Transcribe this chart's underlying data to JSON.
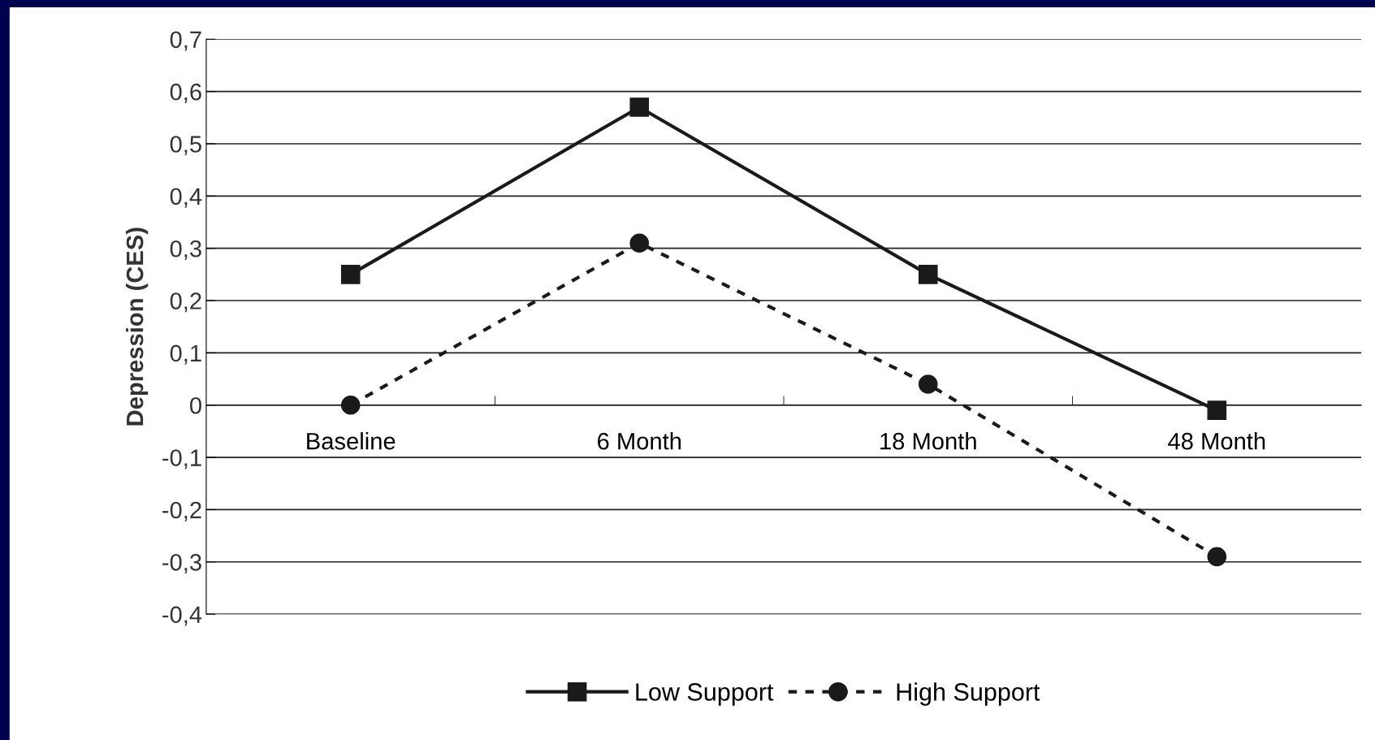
{
  "chart_data": {
    "type": "line",
    "ylabel": "Depression (CES)",
    "categories": [
      "Baseline",
      "6 Month",
      "18 Month",
      "48 Month"
    ],
    "series": [
      {
        "name": "Low Support",
        "color": "#1a1a1a",
        "values": [
          0.25,
          0.57,
          0.25,
          -0.01
        ],
        "marker": "square",
        "line_style": "solid"
      },
      {
        "name": "High Support",
        "color": "#1a1a1a",
        "values": [
          0.0,
          0.31,
          0.04,
          -0.29
        ],
        "marker": "circle",
        "line_style": "dotted"
      }
    ],
    "ylim": [
      -0.4,
      0.7
    ],
    "yticks": [
      {
        "value": -0.4,
        "label": "-0,4"
      },
      {
        "value": -0.3,
        "label": "-0,3"
      },
      {
        "value": -0.2,
        "label": "-0,2"
      },
      {
        "value": -0.1,
        "label": "-0,1"
      },
      0,
      {
        "value": 0.1,
        "label": "0,1"
      },
      {
        "value": 0.2,
        "label": "0,2"
      },
      {
        "value": 0.3,
        "label": "0,3"
      },
      {
        "value": 0.4,
        "label": "0,4"
      },
      {
        "value": 0.5,
        "label": "0,5"
      },
      {
        "value": 0.6,
        "label": "0,6"
      },
      {
        "value": 0.7,
        "label": "0,7"
      }
    ],
    "grid": "y",
    "legend": "bottom"
  }
}
